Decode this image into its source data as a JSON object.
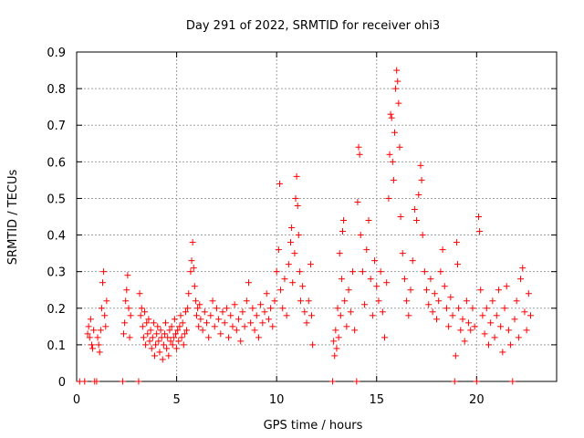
{
  "chart_data": {
    "type": "scatter",
    "title": "Day 291 of 2022, SRMTID for receiver ohi3",
    "xlabel": "GPS time / hours",
    "ylabel": "SRMTID / TECUs",
    "xlim": [
      0,
      24
    ],
    "ylim": [
      0,
      0.9
    ],
    "xticks": [
      0,
      5,
      10,
      15,
      20
    ],
    "xtick_labels": [
      "0",
      "5",
      "10",
      "15",
      "20"
    ],
    "yticks": [
      0,
      0.1,
      0.2,
      0.3,
      0.4,
      0.5,
      0.6,
      0.7,
      0.8,
      0.9
    ],
    "ytick_labels": [
      "0",
      "0.1",
      "0.2",
      "0.3",
      "0.4",
      "0.5",
      "0.6",
      "0.7",
      "0.8",
      "0.9"
    ],
    "grid": true,
    "marker": "+",
    "color": "#ff0000",
    "series": [
      {
        "name": "SRMTID",
        "points": [
          [
            0.15,
            0
          ],
          [
            0.4,
            0
          ],
          [
            0.55,
            0.13
          ],
          [
            0.6,
            0.15
          ],
          [
            0.65,
            0.12
          ],
          [
            0.7,
            0.17
          ],
          [
            0.75,
            0.1
          ],
          [
            0.8,
            0.09
          ],
          [
            0.85,
            0.14
          ],
          [
            0.9,
            0.0
          ],
          [
            1.0,
            0.0
          ],
          [
            1.05,
            0.12
          ],
          [
            1.1,
            0.1
          ],
          [
            1.15,
            0.08
          ],
          [
            1.2,
            0.14
          ],
          [
            1.25,
            0.2
          ],
          [
            1.3,
            0.27
          ],
          [
            1.35,
            0.3
          ],
          [
            1.4,
            0.18
          ],
          [
            1.45,
            0.15
          ],
          [
            1.5,
            0.22
          ],
          [
            2.3,
            0
          ],
          [
            2.35,
            0.13
          ],
          [
            2.4,
            0.16
          ],
          [
            2.45,
            0.22
          ],
          [
            2.5,
            0.25
          ],
          [
            2.55,
            0.29
          ],
          [
            2.6,
            0.2
          ],
          [
            2.65,
            0.12
          ],
          [
            2.7,
            0.18
          ],
          [
            3.1,
            0
          ],
          [
            3.15,
            0.24
          ],
          [
            3.2,
            0.18
          ],
          [
            3.25,
            0.2
          ],
          [
            3.3,
            0.15
          ],
          [
            3.35,
            0.12
          ],
          [
            3.4,
            0.19
          ],
          [
            3.45,
            0.1
          ],
          [
            3.5,
            0.16
          ],
          [
            3.55,
            0.13
          ],
          [
            3.6,
            0.17
          ],
          [
            3.65,
            0.11
          ],
          [
            3.7,
            0.14
          ],
          [
            3.75,
            0.09
          ],
          [
            3.8,
            0.12
          ],
          [
            3.85,
            0.16
          ],
          [
            3.9,
            0.07
          ],
          [
            3.95,
            0.1
          ],
          [
            4.0,
            0.13
          ],
          [
            4.05,
            0.15
          ],
          [
            4.1,
            0.11
          ],
          [
            4.15,
            0.08
          ],
          [
            4.2,
            0.14
          ],
          [
            4.25,
            0.12
          ],
          [
            4.3,
            0.06
          ],
          [
            4.35,
            0.1
          ],
          [
            4.4,
            0.13
          ],
          [
            4.45,
            0.16
          ],
          [
            4.5,
            0.09
          ],
          [
            4.55,
            0.12
          ],
          [
            4.6,
            0.07
          ],
          [
            4.65,
            0.14
          ],
          [
            4.7,
            0.11
          ],
          [
            4.75,
            0.15
          ],
          [
            4.8,
            0.1
          ],
          [
            4.85,
            0.12
          ],
          [
            4.9,
            0.17
          ],
          [
            4.95,
            0.13
          ],
          [
            5.0,
            0.09
          ],
          [
            5.05,
            0.14
          ],
          [
            5.1,
            0.11
          ],
          [
            5.15,
            0.15
          ],
          [
            5.2,
            0.18
          ],
          [
            5.25,
            0.12
          ],
          [
            5.3,
            0.16
          ],
          [
            5.35,
            0.1
          ],
          [
            5.4,
            0.13
          ],
          [
            5.45,
            0.19
          ],
          [
            5.5,
            0.14
          ],
          [
            5.55,
            0.2
          ],
          [
            5.6,
            0.24
          ],
          [
            5.7,
            0.3
          ],
          [
            5.75,
            0.33
          ],
          [
            5.8,
            0.38
          ],
          [
            5.85,
            0.31
          ],
          [
            5.9,
            0.26
          ],
          [
            5.95,
            0.22
          ],
          [
            6.0,
            0.18
          ],
          [
            6.05,
            0.2
          ],
          [
            6.1,
            0.15
          ],
          [
            6.15,
            0.21
          ],
          [
            6.2,
            0.17
          ],
          [
            6.3,
            0.14
          ],
          [
            6.4,
            0.19
          ],
          [
            6.5,
            0.16
          ],
          [
            6.6,
            0.12
          ],
          [
            6.7,
            0.18
          ],
          [
            6.8,
            0.22
          ],
          [
            6.9,
            0.15
          ],
          [
            7.0,
            0.2
          ],
          [
            7.1,
            0.17
          ],
          [
            7.2,
            0.13
          ],
          [
            7.3,
            0.19
          ],
          [
            7.4,
            0.16
          ],
          [
            7.5,
            0.2
          ],
          [
            7.6,
            0.12
          ],
          [
            7.7,
            0.18
          ],
          [
            7.8,
            0.15
          ],
          [
            7.9,
            0.21
          ],
          [
            8.0,
            0.14
          ],
          [
            8.1,
            0.17
          ],
          [
            8.2,
            0.11
          ],
          [
            8.3,
            0.19
          ],
          [
            8.4,
            0.15
          ],
          [
            8.5,
            0.22
          ],
          [
            8.6,
            0.27
          ],
          [
            8.7,
            0.16
          ],
          [
            8.8,
            0.2
          ],
          [
            8.9,
            0.14
          ],
          [
            9.0,
            0.18
          ],
          [
            9.1,
            0.12
          ],
          [
            9.2,
            0.21
          ],
          [
            9.3,
            0.16
          ],
          [
            9.4,
            0.19
          ],
          [
            9.5,
            0.24
          ],
          [
            9.6,
            0.17
          ],
          [
            9.7,
            0.2
          ],
          [
            9.8,
            0.15
          ],
          [
            9.9,
            0.22
          ],
          [
            10.0,
            0.3
          ],
          [
            10.1,
            0.36
          ],
          [
            10.15,
            0.54
          ],
          [
            10.2,
            0.25
          ],
          [
            10.3,
            0.2
          ],
          [
            10.4,
            0.28
          ],
          [
            10.5,
            0.18
          ],
          [
            10.6,
            0.32
          ],
          [
            10.7,
            0.38
          ],
          [
            10.75,
            0.42
          ],
          [
            10.8,
            0.27
          ],
          [
            10.9,
            0.35
          ],
          [
            10.95,
            0.5
          ],
          [
            11.0,
            0.56
          ],
          [
            11.05,
            0.48
          ],
          [
            11.1,
            0.4
          ],
          [
            11.15,
            0.3
          ],
          [
            11.2,
            0.22
          ],
          [
            11.3,
            0.26
          ],
          [
            11.4,
            0.19
          ],
          [
            11.5,
            0.16
          ],
          [
            11.6,
            0.22
          ],
          [
            11.7,
            0.32
          ],
          [
            11.75,
            0.18
          ],
          [
            11.8,
            0.1
          ],
          [
            12.8,
            0
          ],
          [
            12.85,
            0.11
          ],
          [
            12.9,
            0.07
          ],
          [
            12.95,
            0.14
          ],
          [
            13.0,
            0.09
          ],
          [
            13.05,
            0.2
          ],
          [
            13.1,
            0.12
          ],
          [
            13.15,
            0.35
          ],
          [
            13.2,
            0.18
          ],
          [
            13.25,
            0.28
          ],
          [
            13.3,
            0.41
          ],
          [
            13.35,
            0.44
          ],
          [
            13.4,
            0.22
          ],
          [
            13.5,
            0.15
          ],
          [
            13.6,
            0.25
          ],
          [
            13.7,
            0.19
          ],
          [
            13.8,
            0.3
          ],
          [
            13.9,
            0.14
          ],
          [
            14.0,
            0
          ],
          [
            14.05,
            0.49
          ],
          [
            14.1,
            0.64
          ],
          [
            14.15,
            0.62
          ],
          [
            14.2,
            0.4
          ],
          [
            14.3,
            0.3
          ],
          [
            14.4,
            0.21
          ],
          [
            14.5,
            0.36
          ],
          [
            14.6,
            0.44
          ],
          [
            14.7,
            0.28
          ],
          [
            14.8,
            0.18
          ],
          [
            14.9,
            0.33
          ],
          [
            15.0,
            0.26
          ],
          [
            15.1,
            0.22
          ],
          [
            15.2,
            0.3
          ],
          [
            15.3,
            0.19
          ],
          [
            15.4,
            0.12
          ],
          [
            15.5,
            0.27
          ],
          [
            15.6,
            0.5
          ],
          [
            15.65,
            0.62
          ],
          [
            15.7,
            0.73
          ],
          [
            15.75,
            0.72
          ],
          [
            15.8,
            0.6
          ],
          [
            15.85,
            0.55
          ],
          [
            15.9,
            0.68
          ],
          [
            15.95,
            0.8
          ],
          [
            16.0,
            0.85
          ],
          [
            16.05,
            0.82
          ],
          [
            16.1,
            0.76
          ],
          [
            16.15,
            0.64
          ],
          [
            16.2,
            0.45
          ],
          [
            16.3,
            0.35
          ],
          [
            16.4,
            0.28
          ],
          [
            16.5,
            0.22
          ],
          [
            16.6,
            0.18
          ],
          [
            16.7,
            0.25
          ],
          [
            16.8,
            0.33
          ],
          [
            16.9,
            0.47
          ],
          [
            17.0,
            0.44
          ],
          [
            17.1,
            0.51
          ],
          [
            17.2,
            0.59
          ],
          [
            17.25,
            0.55
          ],
          [
            17.3,
            0.4
          ],
          [
            17.4,
            0.3
          ],
          [
            17.5,
            0.25
          ],
          [
            17.6,
            0.21
          ],
          [
            17.7,
            0.28
          ],
          [
            17.8,
            0.19
          ],
          [
            17.9,
            0.24
          ],
          [
            18.0,
            0.17
          ],
          [
            18.1,
            0.22
          ],
          [
            18.2,
            0.3
          ],
          [
            18.3,
            0.36
          ],
          [
            18.4,
            0.26
          ],
          [
            18.5,
            0.2
          ],
          [
            18.6,
            0.15
          ],
          [
            18.7,
            0.23
          ],
          [
            18.8,
            0.18
          ],
          [
            18.9,
            0
          ],
          [
            18.95,
            0.07
          ],
          [
            19.0,
            0.38
          ],
          [
            19.05,
            0.32
          ],
          [
            19.1,
            0.2
          ],
          [
            19.2,
            0.14
          ],
          [
            19.3,
            0.17
          ],
          [
            19.4,
            0.11
          ],
          [
            19.5,
            0.22
          ],
          [
            19.6,
            0.16
          ],
          [
            19.7,
            0.14
          ],
          [
            19.8,
            0.2
          ],
          [
            19.9,
            0.15
          ],
          [
            20.0,
            0
          ],
          [
            20.1,
            0.45
          ],
          [
            20.15,
            0.41
          ],
          [
            20.2,
            0.25
          ],
          [
            20.3,
            0.18
          ],
          [
            20.4,
            0.13
          ],
          [
            20.5,
            0.2
          ],
          [
            20.6,
            0.1
          ],
          [
            20.7,
            0.16
          ],
          [
            20.8,
            0.22
          ],
          [
            20.9,
            0.12
          ],
          [
            21.0,
            0.18
          ],
          [
            21.1,
            0.25
          ],
          [
            21.2,
            0.15
          ],
          [
            21.3,
            0.08
          ],
          [
            21.4,
            0.2
          ],
          [
            21.5,
            0.26
          ],
          [
            21.6,
            0.14
          ],
          [
            21.7,
            0.1
          ],
          [
            21.8,
            0
          ],
          [
            21.9,
            0.17
          ],
          [
            22.0,
            0.22
          ],
          [
            22.1,
            0.12
          ],
          [
            22.2,
            0.28
          ],
          [
            22.3,
            0.31
          ],
          [
            22.4,
            0.19
          ],
          [
            22.5,
            0.14
          ],
          [
            22.6,
            0.24
          ],
          [
            22.7,
            0.18
          ]
        ]
      }
    ]
  }
}
